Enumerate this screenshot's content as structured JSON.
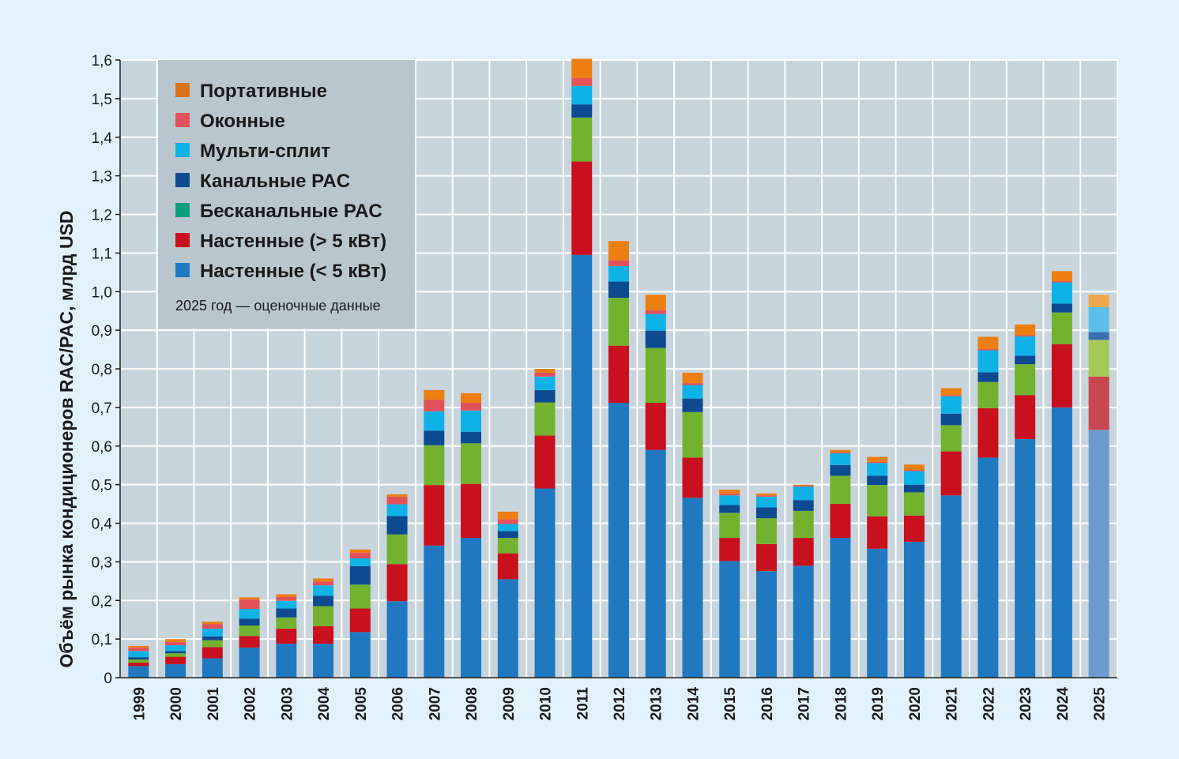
{
  "chart_data": {
    "type": "bar",
    "stacked": true,
    "ylabel": "Объём рынка кондиционеров RAC/PAC, млрд USD",
    "ylim": [
      0,
      1.6
    ],
    "yticks": [
      "0",
      "0,1",
      "0,2",
      "0,3",
      "0,4",
      "0,5",
      "0,6",
      "0,7",
      "0,8",
      "0,9",
      "1,0",
      "1,1",
      "1,2",
      "1,3",
      "1,4",
      "1,5",
      "1,6"
    ],
    "grid": true,
    "legend_position": "top-left",
    "note": "2025 год — оценочные данные",
    "estimated_category": "2025",
    "categories": [
      "1999",
      "2000",
      "2001",
      "2002",
      "2003",
      "2004",
      "2005",
      "2006",
      "2007",
      "2008",
      "2009",
      "2010",
      "2011",
      "2012",
      "2013",
      "2014",
      "2015",
      "2016",
      "2017",
      "2018",
      "2019",
      "2020",
      "2021",
      "2022",
      "2023",
      "2024",
      "2025"
    ],
    "series": [
      {
        "name": "Настенные (< 5 кВт)",
        "color": "#2079c0",
        "color_estimated": "#6a9cd0",
        "values": [
          0.03,
          0.035,
          0.05,
          0.078,
          0.088,
          0.088,
          0.118,
          0.198,
          0.342,
          0.362,
          0.255,
          0.49,
          1.095,
          0.712,
          0.59,
          0.466,
          0.302,
          0.276,
          0.29,
          0.362,
          0.334,
          0.352,
          0.472,
          0.57,
          0.618,
          0.7,
          0.642
        ]
      },
      {
        "name": "Настенные (> 5 кВт)",
        "color": "#c8101e",
        "color_estimated": "#c9474f",
        "values": [
          0.009,
          0.019,
          0.029,
          0.03,
          0.039,
          0.045,
          0.061,
          0.096,
          0.157,
          0.14,
          0.067,
          0.137,
          0.242,
          0.148,
          0.122,
          0.104,
          0.06,
          0.07,
          0.072,
          0.088,
          0.084,
          0.068,
          0.114,
          0.128,
          0.114,
          0.164,
          0.138
        ]
      },
      {
        "name": "Бесканальные PAC",
        "color": "#72b22e",
        "color_estimated": "#a6c857",
        "values": [
          0.008,
          0.009,
          0.018,
          0.027,
          0.029,
          0.052,
          0.062,
          0.077,
          0.103,
          0.105,
          0.04,
          0.086,
          0.114,
          0.124,
          0.142,
          0.118,
          0.065,
          0.067,
          0.07,
          0.073,
          0.081,
          0.06,
          0.068,
          0.068,
          0.08,
          0.082,
          0.095
        ]
      },
      {
        "name": "Канальные PAC",
        "color": "#0d4a8f",
        "color_estimated": "#3a6fae",
        "values": [
          0.006,
          0.006,
          0.01,
          0.018,
          0.023,
          0.027,
          0.048,
          0.048,
          0.038,
          0.03,
          0.018,
          0.032,
          0.034,
          0.042,
          0.045,
          0.035,
          0.02,
          0.028,
          0.028,
          0.028,
          0.024,
          0.02,
          0.03,
          0.025,
          0.022,
          0.023,
          0.02
        ]
      },
      {
        "name": "Мульти-сплит",
        "color": "#0fb2e6",
        "color_estimated": "#5cbfe8",
        "values": [
          0.016,
          0.015,
          0.02,
          0.025,
          0.02,
          0.027,
          0.02,
          0.03,
          0.05,
          0.055,
          0.018,
          0.035,
          0.048,
          0.04,
          0.043,
          0.035,
          0.025,
          0.028,
          0.035,
          0.03,
          0.033,
          0.035,
          0.045,
          0.057,
          0.05,
          0.055,
          0.065
        ]
      },
      {
        "name": "Оконные",
        "color": "#e3525a",
        "color_estimated": "#e3525a",
        "values": [
          0.008,
          0.008,
          0.012,
          0.024,
          0.01,
          0.01,
          0.015,
          0.02,
          0.03,
          0.02,
          0.012,
          0.01,
          0.02,
          0.015,
          0.01,
          0.005,
          0.005,
          0.003,
          0.003,
          0.003,
          0.003,
          0.003,
          0.003,
          0.003,
          0.003,
          0.003,
          0.0
        ]
      },
      {
        "name": "Портативные",
        "color": "#ec7e12",
        "color_estimated": "#f0a64a",
        "values": [
          0.005,
          0.008,
          0.006,
          0.006,
          0.007,
          0.008,
          0.008,
          0.006,
          0.025,
          0.025,
          0.02,
          0.01,
          0.05,
          0.05,
          0.04,
          0.027,
          0.01,
          0.005,
          0.002,
          0.006,
          0.013,
          0.014,
          0.018,
          0.032,
          0.028,
          0.026,
          0.032
        ]
      }
    ],
    "legend_order": [
      "Портативные",
      "Оконные",
      "Мульти-сплит",
      "Канальные PAC",
      "Бесканальные PAC",
      "Настенные (> 5 кВт)",
      "Настенные (< 5 кВт)"
    ],
    "legend_colors": {
      "Портативные": "#d97318",
      "Оконные": "#e3525a",
      "Мульти-сплит": "#0fb2e6",
      "Канальные PAC": "#0d4a8f",
      "Бесканальные PAC": "#0c9e7d",
      "Настенные (> 5 кВт)": "#c8101e",
      "Настенные (< 5 кВт)": "#2079c0"
    },
    "plot_background": "#c8d5dd",
    "legend_background": "#b9c6ce"
  }
}
